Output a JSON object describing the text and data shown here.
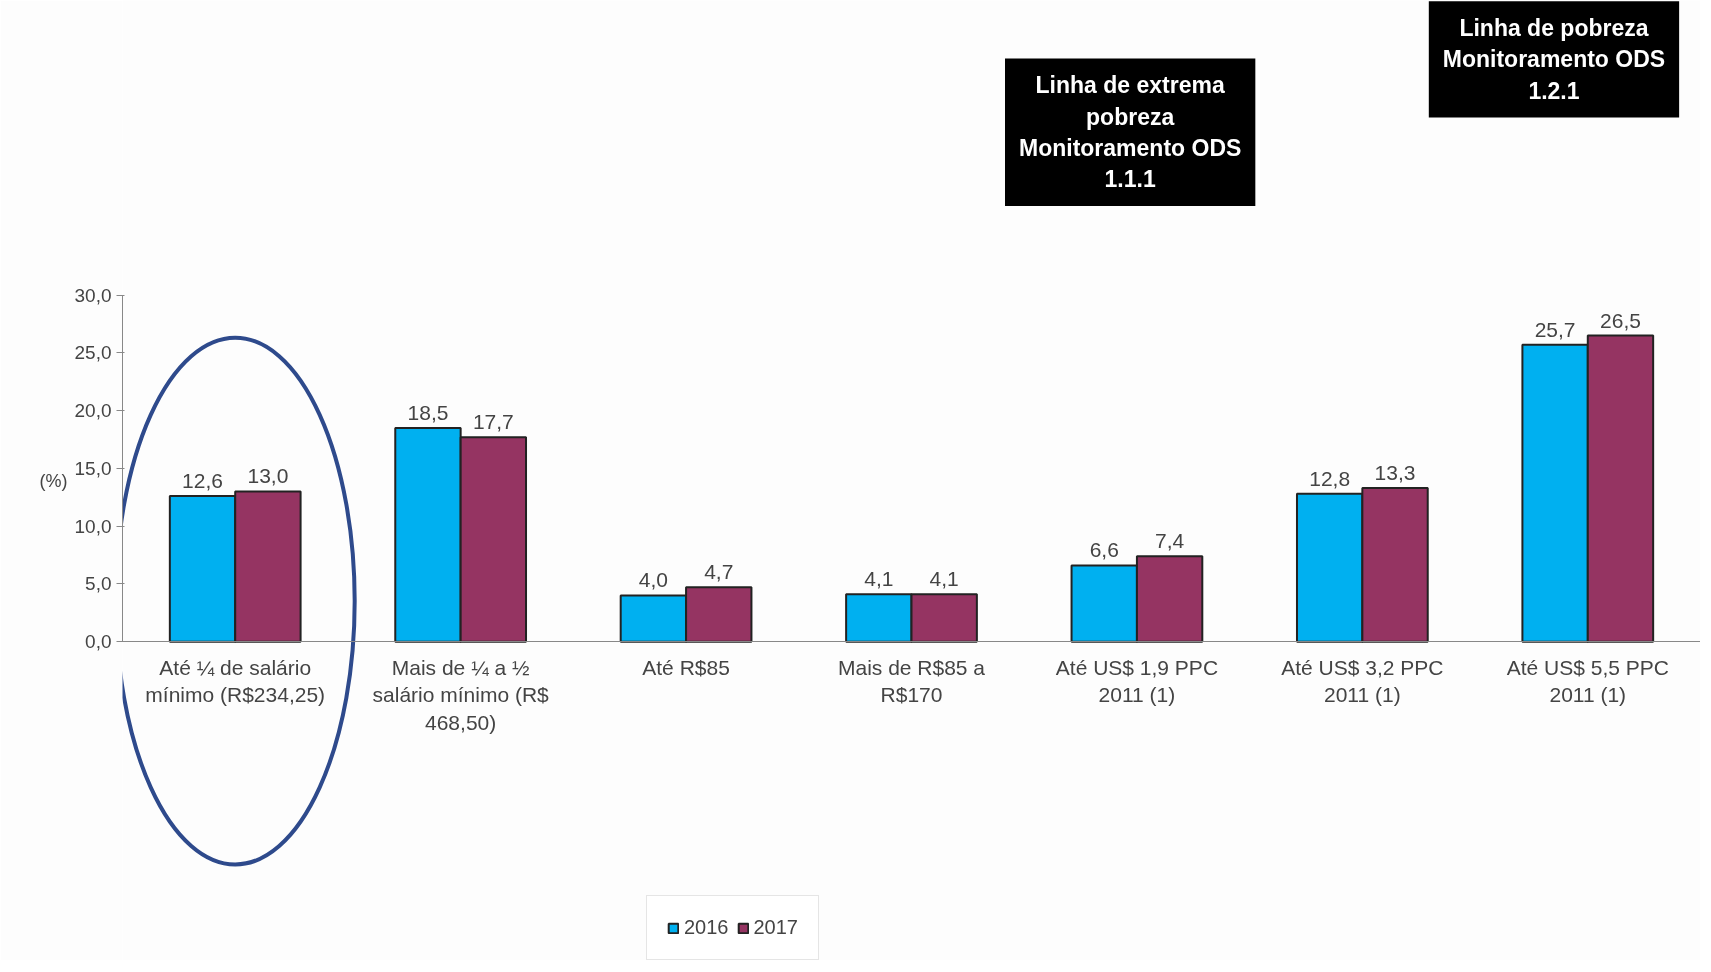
{
  "chart_data": {
    "type": "bar",
    "ylabel": "(%)",
    "categories": [
      "Até ¼ de salário mínimo (R$234,25)",
      "Mais de ¼ a ½ salário mínimo (R$ 468,50)",
      "Até R$85",
      "Mais de R$85 a R$170",
      "Até US$ 1,9 PPC 2011 (1)",
      "Até US$ 3,2 PPC 2011 (1)",
      "Até US$ 5,5 PPC 2011 (1)"
    ],
    "series": [
      {
        "name": "2016",
        "color": "#00b0f0",
        "values": [
          12.6,
          18.5,
          4.0,
          4.1,
          6.6,
          12.8,
          25.7
        ],
        "value_labels": [
          "12,6",
          "18,5",
          "4,0",
          "4,1",
          "6,6",
          "12,8",
          "25,7"
        ]
      },
      {
        "name": "2017",
        "color": "#953462",
        "values": [
          13.0,
          17.7,
          4.7,
          4.1,
          7.4,
          13.3,
          26.5
        ],
        "value_labels": [
          "13,0",
          "17,7",
          "4,7",
          "4,1",
          "7,4",
          "13,3",
          "26,5"
        ]
      }
    ],
    "ylim": [
      0,
      30
    ],
    "yticks": [
      {
        "value": 0,
        "label": "0,0"
      },
      {
        "value": 5,
        "label": "5,0"
      },
      {
        "value": 10,
        "label": "10,0"
      },
      {
        "value": 15,
        "label": "15,0"
      },
      {
        "value": 20,
        "label": "20,0"
      },
      {
        "value": 25,
        "label": "25,0"
      },
      {
        "value": 30,
        "label": "30,0"
      }
    ],
    "annotations": [
      "Linha de extrema pobreza Monitoramento ODS 1.1.1",
      "Linha de pobreza Monitoramento ODS 1.2.1"
    ],
    "grid": false,
    "legend": "bottom"
  }
}
